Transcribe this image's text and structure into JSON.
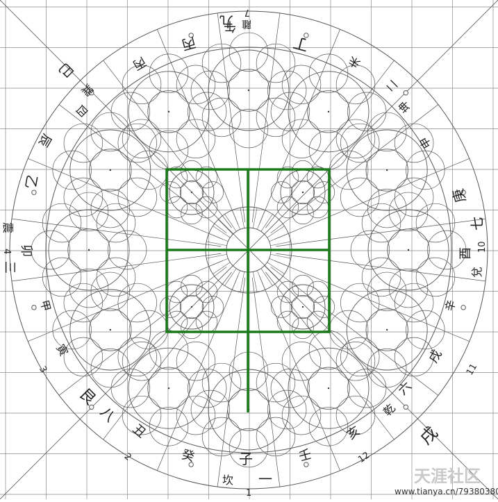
{
  "colors": {
    "grid": "#888888",
    "structure": "#555555",
    "highlight": "#1a7a1a",
    "text": "#222222",
    "orange_accent": "#e08040"
  },
  "labels": {
    "bottom_center": "子",
    "bottom_trigram": "坎",
    "bottom_number": "一",
    "bottom_count": "1",
    "top_center": "午",
    "top_number": "九",
    "top_trigram": "離",
    "top_count": "7",
    "left_center": "卯",
    "left_trigram": "震",
    "left_number": "三",
    "left_count": "4",
    "right_center": "酉",
    "right_trigram": "兌",
    "right_number": "七",
    "right_count": "10",
    "top_left_1": "巳",
    "top_left_2": "巽",
    "top_left_3": "四",
    "top_left_4": "辰",
    "top_left_5": "乙",
    "top_left_6": "丙",
    "top_right_1": "丁",
    "top_right_2": "未",
    "top_right_3": "坤",
    "top_right_4": "二",
    "top_right_5": "申",
    "top_right_6": "庚",
    "bottom_left_1": "甲",
    "bottom_left_2": "寅",
    "bottom_left_3": "艮",
    "bottom_left_4": "八",
    "bottom_left_5": "丑",
    "bottom_left_6": "癸",
    "bottom_right_1": "辛",
    "bottom_right_2": "戌",
    "bottom_right_3": "乾",
    "bottom_right_4": "六",
    "bottom_right_5": "亥",
    "bottom_right_6": "壬",
    "count_bottom_left": "2",
    "count_left_lower": "3",
    "count_right_lower": "11",
    "count_bottom_right": "12",
    "watermark_logo": "天涯社区",
    "watermark_url": "www.tianya.cn/79380380"
  }
}
